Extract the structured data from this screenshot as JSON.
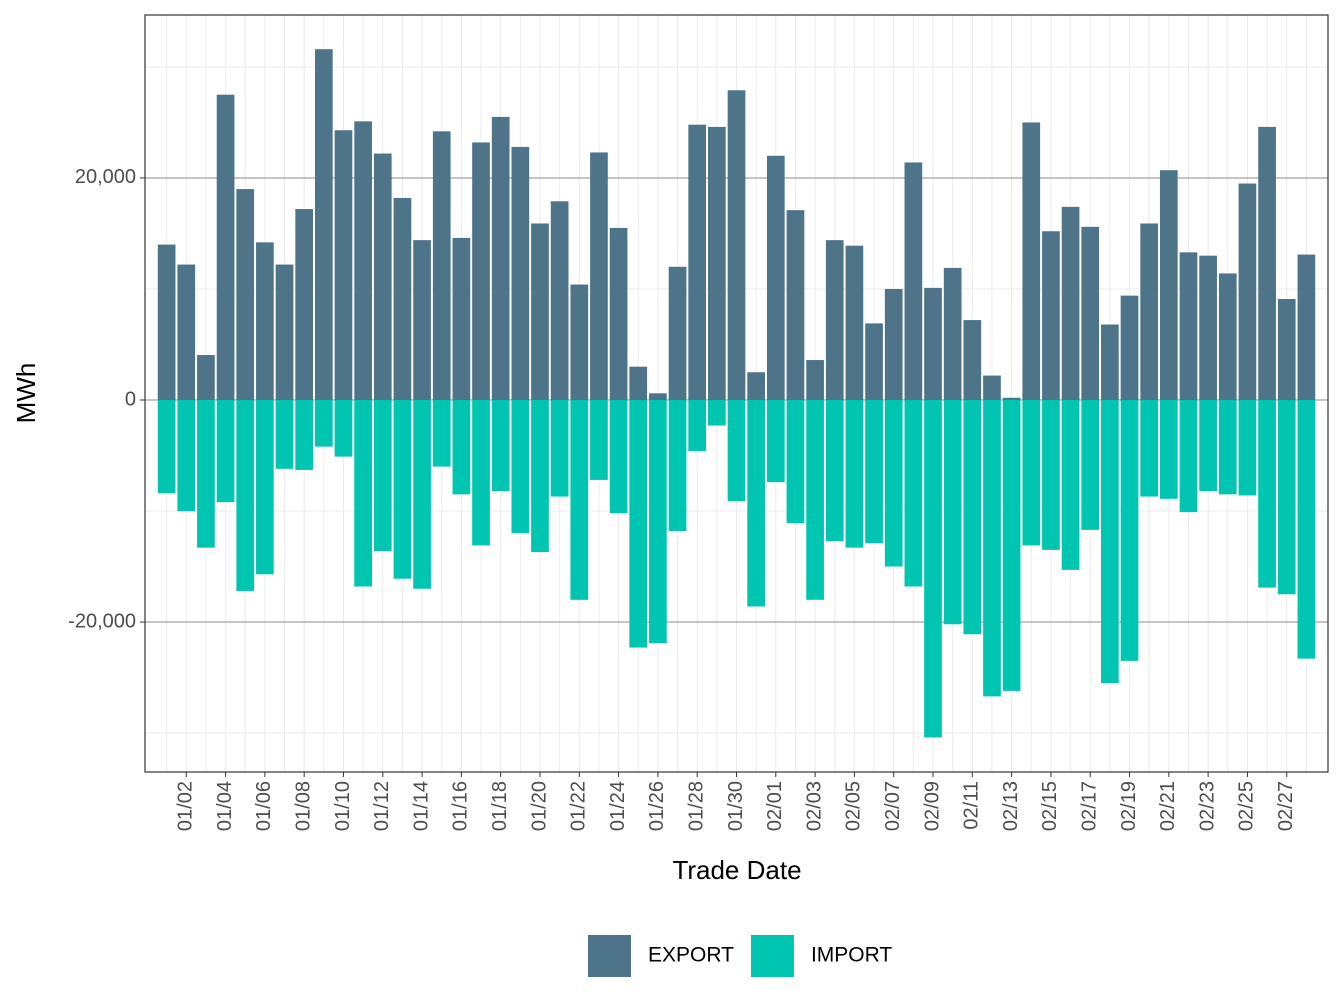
{
  "chart_data": {
    "type": "bar",
    "stacked": true,
    "x_label": "Trade Date",
    "y_label": "MWh",
    "categories": [
      null,
      "01/02",
      null,
      "01/04",
      null,
      "01/06",
      null,
      "01/08",
      null,
      "01/10",
      null,
      "01/12",
      null,
      "01/14",
      null,
      "01/16",
      null,
      "01/18",
      null,
      "01/20",
      null,
      "01/22",
      null,
      "01/24",
      null,
      "01/26",
      null,
      "01/28",
      null,
      "01/30",
      null,
      "02/01",
      null,
      "02/03",
      null,
      "02/05",
      null,
      "02/07",
      null,
      "02/09",
      null,
      "02/11",
      null,
      "02/13",
      null,
      "02/15",
      null,
      "02/17",
      null,
      "02/19",
      null,
      "02/21",
      null,
      "02/23",
      null,
      "02/25",
      null,
      "02/27",
      null
    ],
    "series": [
      {
        "name": "EXPORT",
        "color": "#4e7489",
        "values": [
          14000,
          12200,
          4050,
          27500,
          19000,
          14200,
          12200,
          17200,
          31600,
          24300,
          25100,
          22200,
          18200,
          14400,
          24200,
          14600,
          23200,
          25500,
          22800,
          15900,
          17900,
          10400,
          22300,
          15500,
          3000,
          600,
          12000,
          24800,
          24600,
          27900,
          2500,
          22000,
          17100,
          3600,
          14400,
          13900,
          6900,
          10000,
          21400,
          10100,
          11900,
          7200,
          2200,
          200,
          25000,
          15200,
          17400,
          15600,
          6800,
          9400,
          15900,
          20700,
          13300,
          13000,
          11400,
          19500,
          24600,
          9100,
          13100
        ]
      },
      {
        "name": "IMPORT",
        "color": "#00c5b0",
        "values": [
          -8400,
          -10000,
          -13300,
          -9200,
          -17200,
          -15700,
          -6200,
          -6300,
          -4200,
          -5100,
          -16800,
          -13600,
          -16100,
          -17000,
          -6000,
          -8500,
          -13100,
          -8200,
          -12000,
          -13700,
          -8700,
          -18000,
          -7200,
          -10200,
          -22300,
          -21900,
          -11800,
          -4600,
          -2300,
          -9100,
          -18600,
          -7400,
          -11100,
          -18000,
          -12700,
          -13300,
          -12900,
          -15000,
          -16800,
          -30400,
          -20200,
          -21100,
          -26700,
          -26200,
          -13100,
          -13500,
          -15300,
          -11700,
          -25500,
          -23500,
          -8700,
          -8900,
          -10100,
          -8200,
          -8500,
          -8600,
          -16900,
          -17500,
          -23300
        ]
      }
    ],
    "ylim": [
      -33510,
      34680
    ],
    "yticks": [
      {
        "value": -20000,
        "label": "-20,000"
      },
      0,
      {
        "value": 20000,
        "label": "20,000"
      }
    ],
    "grid": true,
    "legend": "bottom"
  }
}
